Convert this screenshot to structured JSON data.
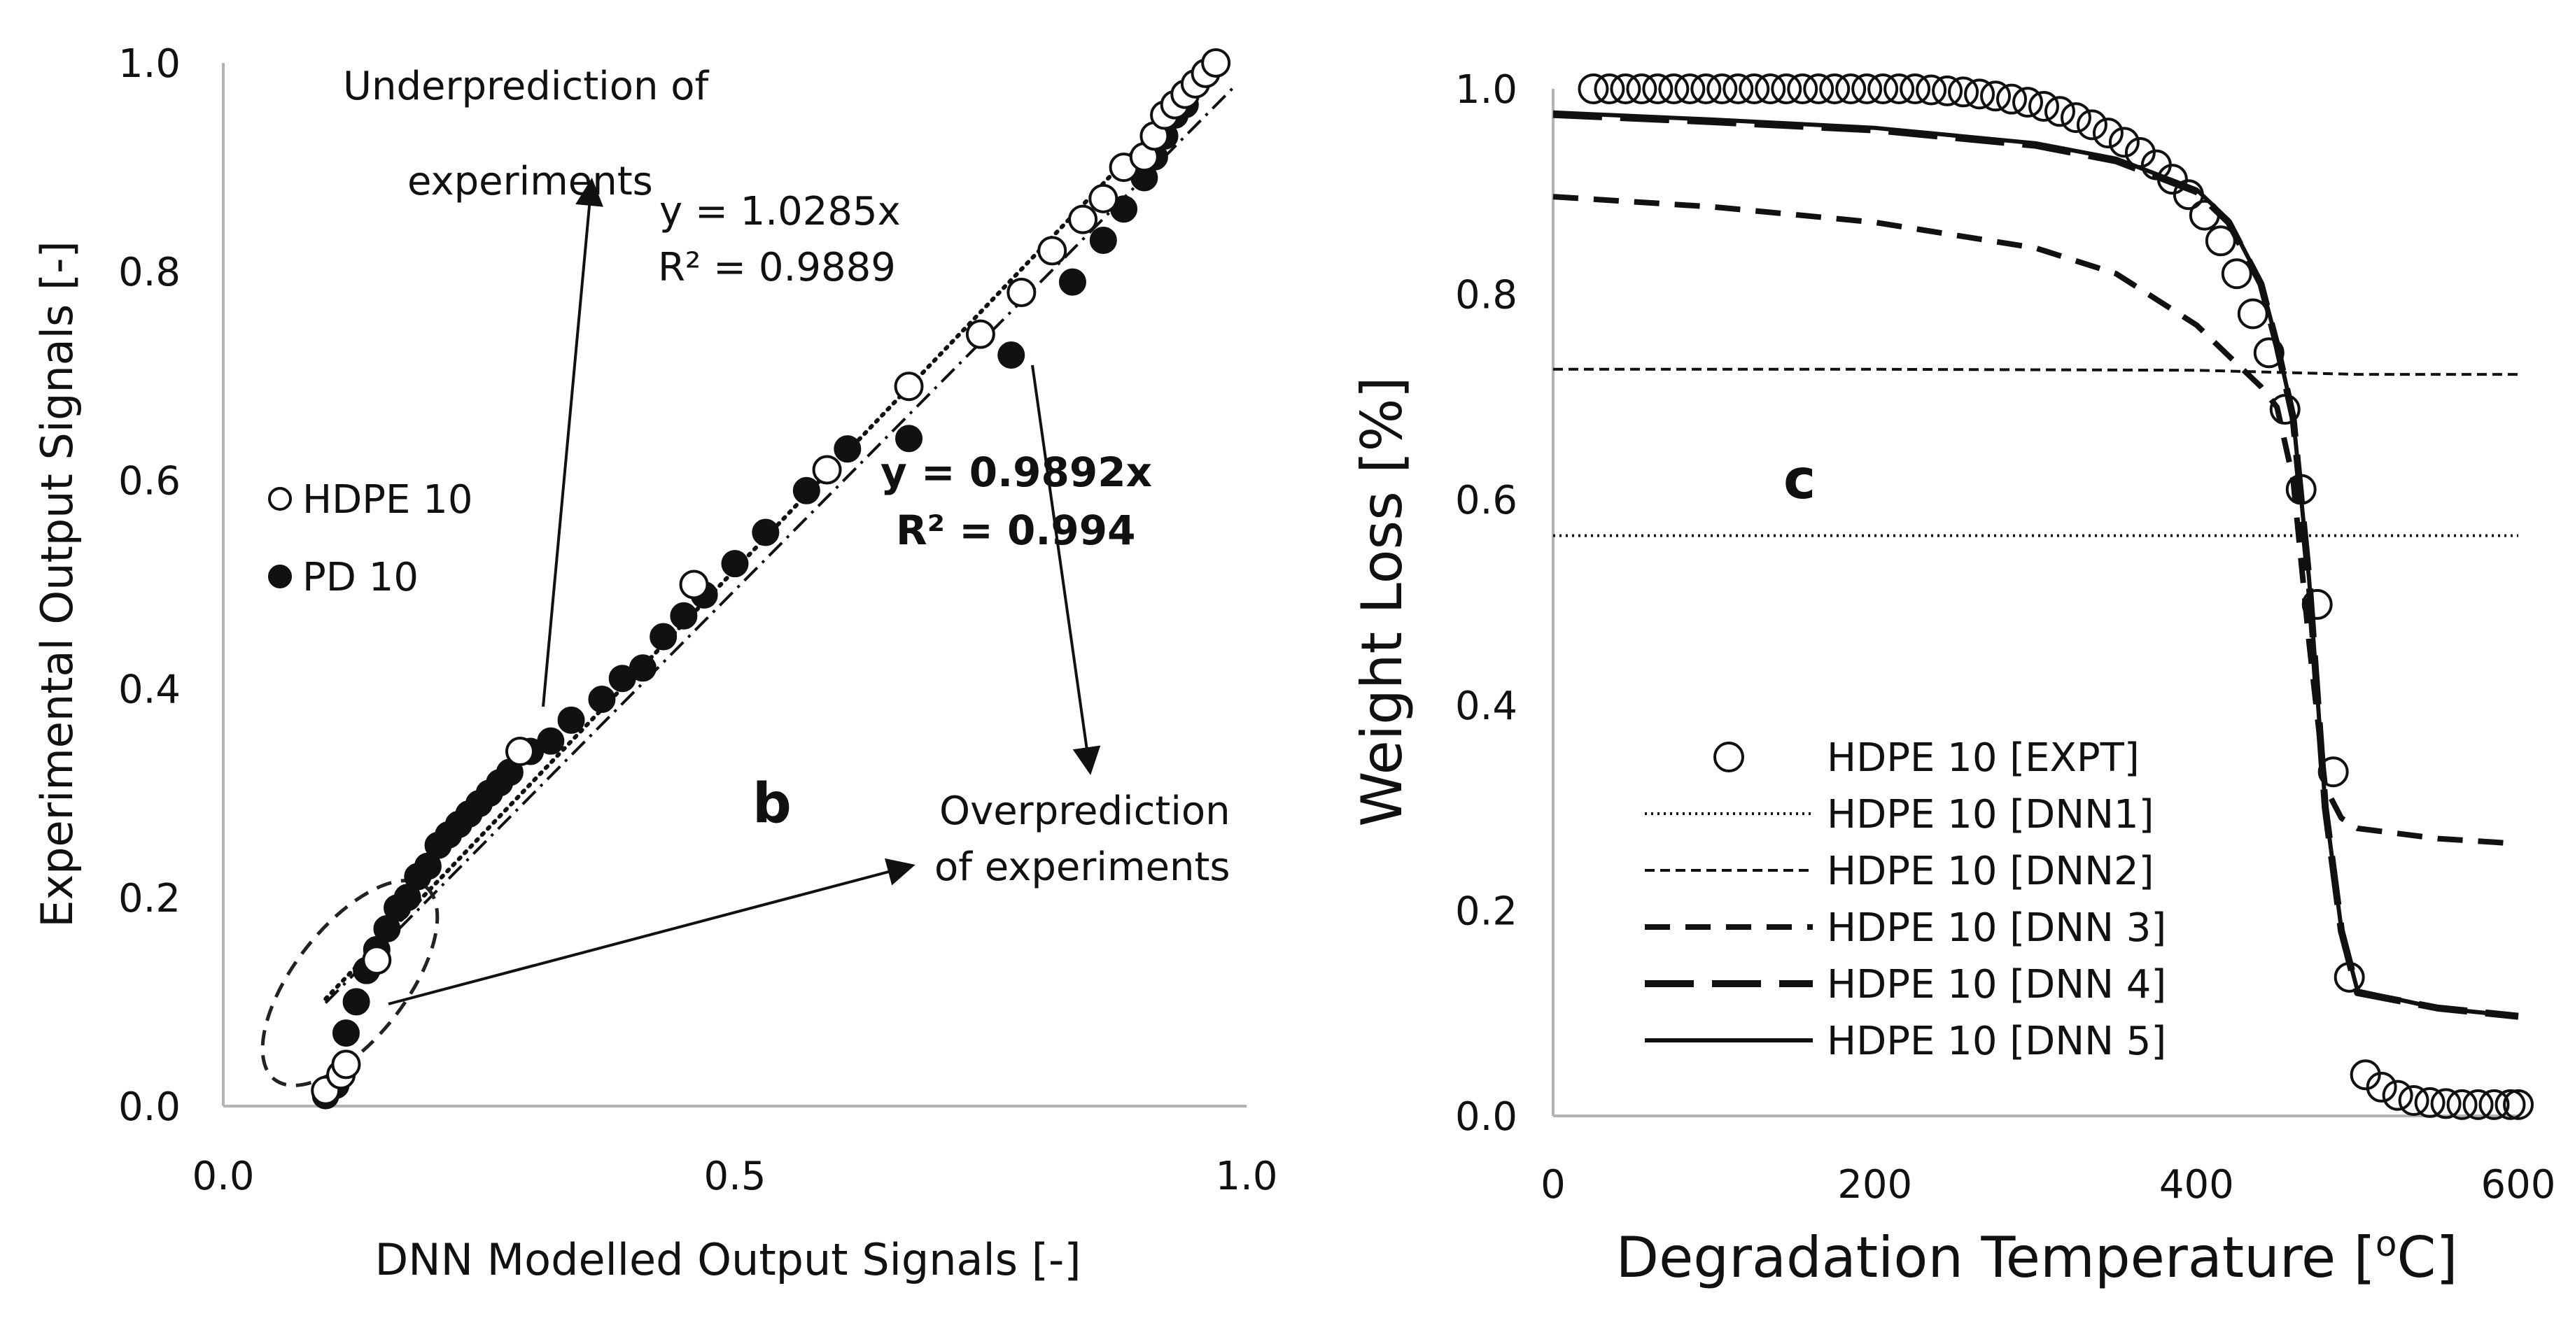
{
  "chart_data": [
    {
      "type": "scatter",
      "panel_label": "b",
      "xlabel": "DNN Modelled Output Signals [-]",
      "ylabel": "Experimental Output Signals [-]",
      "xlim": [
        0.0,
        1.0
      ],
      "ylim": [
        0.0,
        1.0
      ],
      "x_ticks": [
        "0.0",
        "0.5",
        "1.0"
      ],
      "y_ticks": [
        "0.0",
        "0.2",
        "0.4",
        "0.6",
        "0.8",
        "1.0"
      ],
      "legend": [
        {
          "name": "HDPE 10",
          "marker": "open-circle"
        },
        {
          "name": "PD 10",
          "marker": "filled-circle"
        }
      ],
      "series": [
        {
          "name": "HDPE 10",
          "x": [
            0.1,
            0.115,
            0.12,
            0.15,
            0.29,
            0.46,
            0.59,
            0.67,
            0.74,
            0.78,
            0.81,
            0.84,
            0.86,
            0.88,
            0.9,
            0.91,
            0.92,
            0.93,
            0.94,
            0.95,
            0.96,
            0.97
          ],
          "y": [
            0.015,
            0.03,
            0.04,
            0.14,
            0.34,
            0.5,
            0.61,
            0.69,
            0.74,
            0.78,
            0.82,
            0.85,
            0.87,
            0.9,
            0.91,
            0.93,
            0.95,
            0.96,
            0.97,
            0.98,
            0.99,
            1.0
          ]
        },
        {
          "name": "PD 10",
          "x": [
            0.1,
            0.11,
            0.12,
            0.13,
            0.14,
            0.15,
            0.16,
            0.17,
            0.18,
            0.19,
            0.2,
            0.21,
            0.22,
            0.23,
            0.24,
            0.25,
            0.26,
            0.27,
            0.28,
            0.3,
            0.32,
            0.34,
            0.37,
            0.39,
            0.41,
            0.43,
            0.45,
            0.47,
            0.5,
            0.53,
            0.57,
            0.61,
            0.67,
            0.77,
            0.83,
            0.86,
            0.88,
            0.9,
            0.91,
            0.92,
            0.93,
            0.94,
            0.95,
            0.96,
            0.97
          ],
          "y": [
            0.01,
            0.02,
            0.07,
            0.1,
            0.13,
            0.15,
            0.17,
            0.19,
            0.2,
            0.22,
            0.23,
            0.25,
            0.26,
            0.27,
            0.28,
            0.29,
            0.3,
            0.31,
            0.32,
            0.34,
            0.35,
            0.37,
            0.39,
            0.41,
            0.42,
            0.45,
            0.47,
            0.49,
            0.52,
            0.55,
            0.59,
            0.63,
            0.64,
            0.72,
            0.79,
            0.83,
            0.86,
            0.89,
            0.91,
            0.93,
            0.95,
            0.96,
            0.98,
            0.99,
            1.0
          ]
        }
      ],
      "trendlines": [
        {
          "series": "HDPE 10",
          "slope": 1.0285,
          "style": "dotted",
          "equation": "y = 1.0285x",
          "r2": "R² = 0.9889"
        },
        {
          "series": "PD 10",
          "slope": 0.9892,
          "style": "dash-dot",
          "equation": "y = 0.9892x",
          "r2": "R² = 0.994"
        }
      ],
      "annotations": {
        "under_line1": "Underprediction of",
        "under_line2": "experiments",
        "over_line1": "Overprediction",
        "over_line2": "of experiments"
      }
    },
    {
      "type": "line",
      "panel_label": "c",
      "xlabel": "Degradation Temperature [oC]",
      "xlabel_main": "Degradation Temperature [",
      "xlabel_sup": "o",
      "xlabel_tail": "C]",
      "ylabel": "Weight Loss [%]",
      "xlim": [
        0,
        600
      ],
      "ylim": [
        0.0,
        1.0
      ],
      "x_ticks": [
        "0",
        "200",
        "400",
        "600"
      ],
      "y_ticks": [
        "0.0",
        "0.2",
        "0.4",
        "0.6",
        "0.8",
        "1.0"
      ],
      "legend_position": "bottom-left",
      "series": [
        {
          "name": "HDPE 10 [EXPT]",
          "style": "open-circle",
          "x": [
            25,
            35,
            45,
            55,
            65,
            75,
            85,
            95,
            105,
            115,
            125,
            135,
            145,
            155,
            165,
            175,
            185,
            195,
            205,
            215,
            225,
            235,
            245,
            255,
            265,
            275,
            285,
            295,
            305,
            315,
            325,
            335,
            345,
            355,
            365,
            375,
            385,
            395,
            405,
            415,
            425,
            435,
            445,
            455,
            465,
            475,
            485,
            495,
            505,
            515,
            525,
            535,
            545,
            555,
            565,
            575,
            585,
            595,
            600
          ],
          "y": [
            1.0,
            1.0,
            1.0,
            1.0,
            1.0,
            1.0,
            1.0,
            1.0,
            1.0,
            1.0,
            1.0,
            1.0,
            1.0,
            1.0,
            1.0,
            1.0,
            1.0,
            1.0,
            1.0,
            1.0,
            1.0,
            0.999,
            0.998,
            0.997,
            0.995,
            0.993,
            0.99,
            0.987,
            0.983,
            0.978,
            0.972,
            0.965,
            0.957,
            0.948,
            0.938,
            0.926,
            0.912,
            0.897,
            0.877,
            0.852,
            0.82,
            0.781,
            0.743,
            0.688,
            0.61,
            0.498,
            0.335,
            0.135,
            0.04,
            0.028,
            0.02,
            0.015,
            0.013,
            0.012,
            0.011,
            0.011,
            0.011,
            0.011,
            0.011
          ]
        },
        {
          "name": "HDPE 10 [DNN1]",
          "style": "dotted-thin",
          "x": [
            0,
            600
          ],
          "y": [
            0.565,
            0.565
          ]
        },
        {
          "name": "HDPE 10 [DNN2]",
          "style": "short-dash",
          "x": [
            0,
            200,
            400,
            450,
            500,
            600
          ],
          "y": [
            0.727,
            0.727,
            0.726,
            0.724,
            0.722,
            0.722
          ]
        },
        {
          "name": "HDPE 10 [DNN 3]",
          "style": "medium-dash",
          "x": [
            0,
            100,
            200,
            300,
            350,
            400,
            420,
            440,
            450,
            460,
            470,
            480,
            490,
            500,
            550,
            600
          ],
          "y": [
            0.895,
            0.885,
            0.87,
            0.845,
            0.82,
            0.77,
            0.74,
            0.71,
            0.69,
            0.62,
            0.46,
            0.32,
            0.29,
            0.28,
            0.27,
            0.265
          ]
        },
        {
          "name": "HDPE 10 [DNN 4]",
          "style": "long-dash",
          "x": [
            0,
            100,
            200,
            300,
            350,
            400,
            420,
            440,
            450,
            460,
            470,
            480,
            490,
            500,
            550,
            600
          ],
          "y": [
            0.975,
            0.968,
            0.96,
            0.945,
            0.93,
            0.9,
            0.87,
            0.81,
            0.75,
            0.68,
            0.52,
            0.3,
            0.18,
            0.12,
            0.105,
            0.097
          ]
        },
        {
          "name": "HDPE 10 [DNN 5]",
          "style": "solid",
          "x": [
            0,
            100,
            200,
            300,
            350,
            400,
            420,
            440,
            450,
            460,
            470,
            480,
            490,
            500,
            550,
            600
          ],
          "y": [
            0.977,
            0.97,
            0.962,
            0.947,
            0.932,
            0.902,
            0.872,
            0.812,
            0.752,
            0.682,
            0.522,
            0.302,
            0.182,
            0.122,
            0.105,
            0.097
          ]
        }
      ]
    }
  ]
}
